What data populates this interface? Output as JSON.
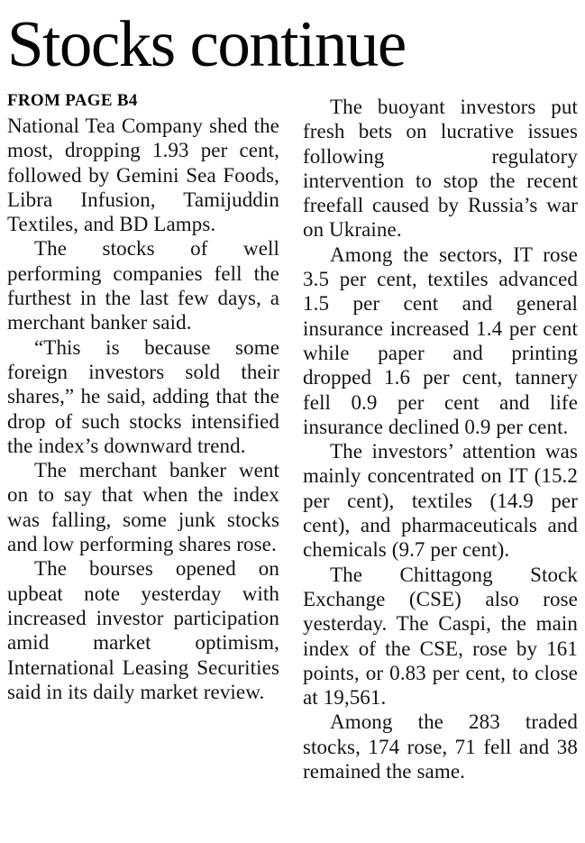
{
  "page": {
    "background_color": "#ffffff",
    "text_color": "#141414",
    "headline_color": "#060606"
  },
  "article": {
    "headline": "Stocks continue",
    "kicker": "FROM PAGE B4",
    "columns": [
      {
        "paragraphs": [
          "National Tea Company shed the most, dropping 1.93 per cent, followed by Gemini Sea Foods, Libra Infusion, Tamijuddin Textiles, and BD Lamps.",
          "The stocks of well performing companies fell the furthest in the last few days, a merchant banker said.",
          "“This is because some foreign investors sold their shares,” he said, adding that the drop of such stocks intensified the index’s downward trend.",
          "The merchant banker went on to say that when the index was falling, some junk stocks and low performing shares rose.",
          "The bourses opened on upbeat note yesterday with increased investor participation amid market optimism, International Leasing Securities said in its daily market review."
        ]
      },
      {
        "paragraphs": [
          "The buoyant investors put fresh bets on lucrative issues following regulatory intervention to stop the recent freefall caused by Russia’s war on Ukraine.",
          "Among the sectors, IT rose 3.5 per cent, textiles advanced 1.5 per cent and general insurance increased 1.4 per cent while paper and printing dropped 1.6 per cent, tannery fell 0.9 per cent and life insurance declined 0.9 per cent.",
          "The investors’ attention was mainly concentrated on IT (15.2 per cent), textiles (14.9 per cent), and pharmaceuticals and chemicals (9.7 per cent).",
          "The Chittagong Stock Exchange (CSE) also rose yesterday. The Caspi, the main index of the CSE, rose by 161 points, or 0.83 per cent, to close at 19,561.",
          "Among the 283 traded stocks, 174 rose, 71 fell and 38 remained the same."
        ]
      }
    ]
  }
}
